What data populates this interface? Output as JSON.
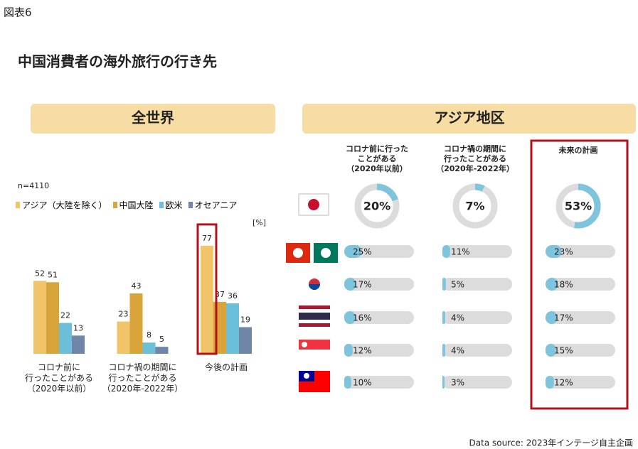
{
  "header": {
    "figure_label": "図表6",
    "title": "中国消費者の海外旅行の行き先"
  },
  "chart_data": [
    {
      "type": "bar",
      "title": "全世界",
      "note": "n=4110",
      "unit": "[%]",
      "categories": [
        "コロナ前に\n行ったことがある\n（2020年以前）",
        "コロナ禍の期間に\n行ったことがある\n（2020年-2022年）",
        "今後の計画"
      ],
      "series": [
        {
          "name": "アジア（大陸を除く）",
          "color": "#f2c46a",
          "values": [
            52,
            23,
            77
          ]
        },
        {
          "name": "中国大陸",
          "color": "#d9a43a",
          "values": [
            51,
            43,
            37
          ]
        },
        {
          "name": "欧米",
          "color": "#6cbfd9",
          "values": [
            22,
            8,
            36
          ]
        },
        {
          "name": "オセアニア",
          "color": "#6f86a8",
          "values": [
            13,
            5,
            19
          ]
        }
      ],
      "ylim": [
        0,
        80
      ],
      "highlight": {
        "series": 0,
        "category": 2
      }
    },
    {
      "type": "progress",
      "title": "アジア地区",
      "series": [
        {
          "name": "コロナ前に行った\nことがある\n（2020年以前）",
          "values": [
            20,
            25,
            17,
            16,
            12,
            10
          ],
          "value_labels": [
            "20%",
            "25%",
            "17%",
            "16%",
            "12%",
            "10%"
          ]
        },
        {
          "name": "コロナ禍の期間に\n行ったことがある\n（2020年-2022年）",
          "values": [
            7,
            11,
            5,
            4,
            4,
            3
          ],
          "value_labels": [
            "7%",
            "11%",
            "5%",
            "4%",
            "4%",
            "3%"
          ]
        },
        {
          "name": "未来の計画",
          "values": [
            53,
            23,
            18,
            17,
            15,
            12
          ],
          "value_labels": [
            "53%",
            "23%",
            "18%",
            "17%",
            "15%",
            "12%"
          ]
        }
      ],
      "xlim": [
        0,
        100
      ],
      "color": "#7ec4dc",
      "track_color": "#dcdcdc",
      "highlight": 2
    }
  ],
  "footer": {
    "source": "Data source: 2023年インテージ自主企画"
  }
}
